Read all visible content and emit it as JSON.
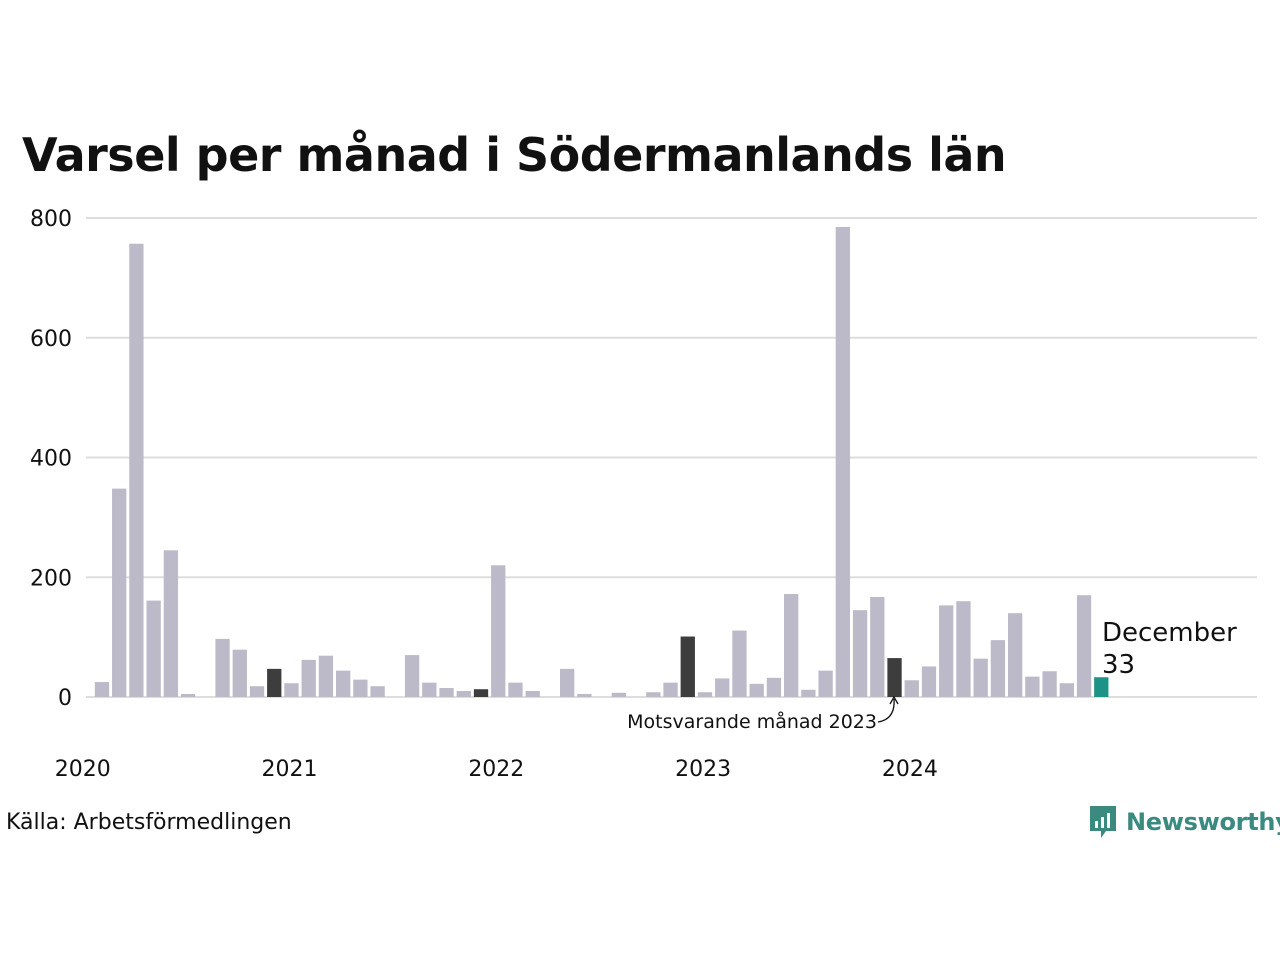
{
  "title": "Varsel per månad i Södermanlands län",
  "source": "Källa: Arbetsförmedlingen",
  "brand": "Newsworthy",
  "colors": {
    "bar": "#bcbac9",
    "comparison": "#3d3d3d",
    "highlight": "#1d9387",
    "grid": "#dddddd",
    "brand": "#3a8a80"
  },
  "chart_data": {
    "type": "bar",
    "title": "Varsel per månad i Södermanlands län",
    "xlabel": "",
    "ylabel": "",
    "ylim": [
      0,
      800
    ],
    "yticks": [
      0,
      200,
      400,
      600,
      800
    ],
    "xtick_labels": [
      "2020",
      "2021",
      "2022",
      "2023",
      "2024"
    ],
    "grid": true,
    "values": [
      25,
      348,
      757,
      161,
      245,
      5,
      0,
      97,
      79,
      18,
      47,
      23,
      62,
      69,
      44,
      29,
      18,
      0,
      70,
      24,
      15,
      10,
      13,
      220,
      24,
      10,
      0,
      47,
      5,
      0,
      7,
      0,
      8,
      24,
      101,
      8,
      31,
      111,
      22,
      32,
      172,
      12,
      44,
      785,
      145,
      167,
      65,
      28,
      51,
      153,
      160,
      64,
      95,
      140,
      34,
      43,
      23,
      170,
      33
    ],
    "comparison_indices": [
      10,
      22,
      34,
      46
    ],
    "highlight_index": 58,
    "annotation": "Motsvarande månad 2023",
    "highlight_label": "December",
    "highlight_value": "33"
  }
}
